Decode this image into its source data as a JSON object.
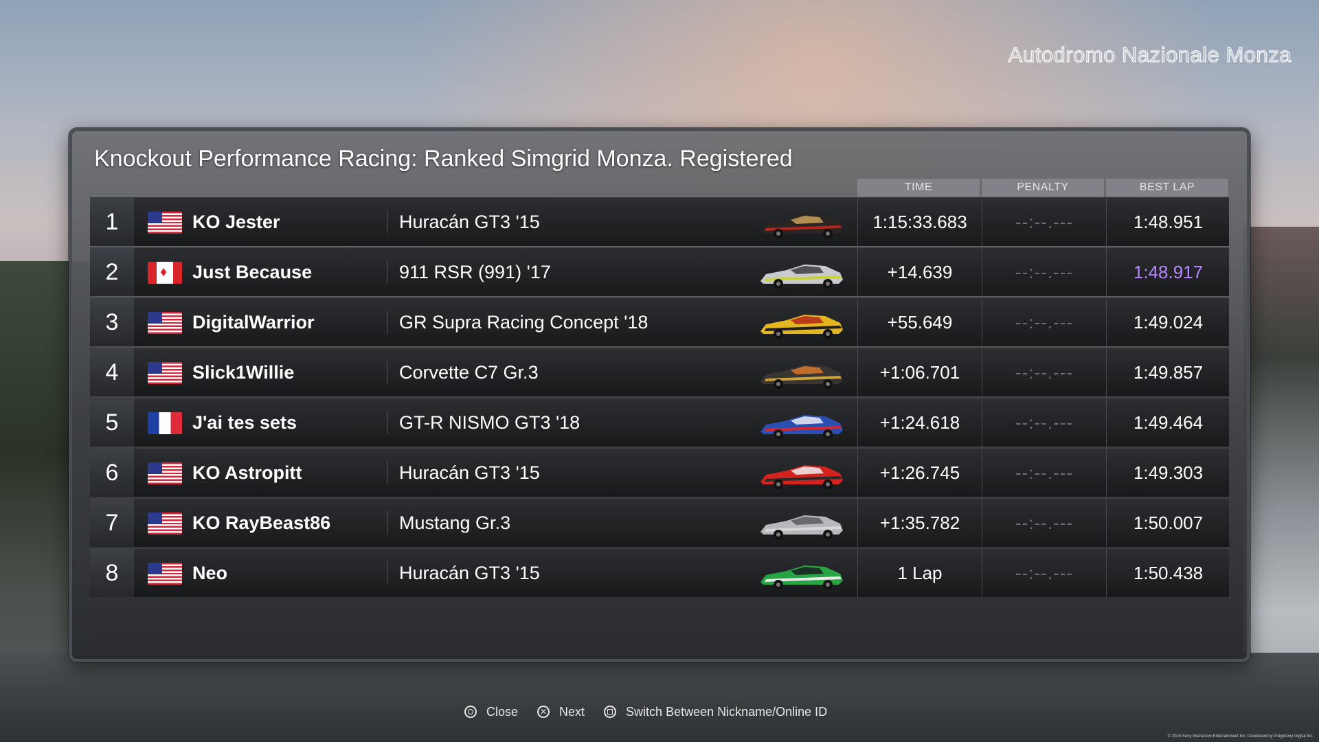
{
  "venue": "Autodromo Nazionale Monza",
  "title": "Knockout Performance Racing: Ranked Simgrid Monza. Registered",
  "columns": {
    "time": "TIME",
    "penalty": "PENALTY",
    "best_lap": "BEST LAP"
  },
  "colors": {
    "best_overall_lap": "#b887ff",
    "us": "#2b3a8c",
    "car_red": "#c8221e",
    "car_green": "#27a544"
  },
  "rows": [
    {
      "position": "1",
      "flag": "us-flag",
      "driver": "KO Jester",
      "car": "Huracán GT3 '15",
      "car_icon": "car-dark-gold",
      "time": "1:15:33.683",
      "penalty": "--:--.---",
      "best_lap": "1:48.951",
      "best_overall": false
    },
    {
      "position": "2",
      "flag": "canada-flag",
      "driver": "Just Because",
      "car": "911 RSR (991) '17",
      "car_icon": "car-silver",
      "time": "+14.639",
      "penalty": "--:--.---",
      "best_lap": "1:48.917",
      "best_overall": true
    },
    {
      "position": "3",
      "flag": "us-flag",
      "driver": "DigitalWarrior",
      "car": "GR Supra Racing Concept '18",
      "car_icon": "car-yellow-red",
      "time": "+55.649",
      "penalty": "--:--.---",
      "best_lap": "1:49.024",
      "best_overall": false
    },
    {
      "position": "4",
      "flag": "us-flag",
      "driver": "Slick1Willie",
      "car": "Corvette C7 Gr.3",
      "car_icon": "car-dark-orange",
      "time": "+1:06.701",
      "penalty": "--:--.---",
      "best_lap": "1:49.857",
      "best_overall": false
    },
    {
      "position": "5",
      "flag": "france-flag",
      "driver": "J'ai tes sets",
      "car": "GT-R NISMO GT3 '18",
      "car_icon": "car-blue-red",
      "time": "+1:24.618",
      "penalty": "--:--.---",
      "best_lap": "1:49.464",
      "best_overall": false
    },
    {
      "position": "6",
      "flag": "us-flag",
      "driver": "KO Astropitt",
      "car": "Huracán GT3 '15",
      "car_icon": "car-red-white",
      "time": "+1:26.745",
      "penalty": "--:--.---",
      "best_lap": "1:49.303",
      "best_overall": false
    },
    {
      "position": "7",
      "flag": "us-flag",
      "driver": "KO RayBeast86",
      "car": "Mustang Gr.3",
      "car_icon": "car-silver-gray",
      "time": "+1:35.782",
      "penalty": "--:--.---",
      "best_lap": "1:50.007",
      "best_overall": false
    },
    {
      "position": "8",
      "flag": "us-flag",
      "driver": "Neo",
      "car": "Huracán GT3 '15",
      "car_icon": "car-green",
      "time": "1 Lap",
      "penalty": "--:--.---",
      "best_lap": "1:50.438",
      "best_overall": false
    }
  ],
  "hints": {
    "close": {
      "icon": "circle-button-icon",
      "label": "Close"
    },
    "next": {
      "icon": "cross-button-icon",
      "label": "Next"
    },
    "switch": {
      "icon": "square-button-icon",
      "label": "Switch Between Nickname/Online ID"
    }
  },
  "copyright": "© 2024 Sony Interactive Entertainment Inc. Developed by Polyphony Digital Inc."
}
